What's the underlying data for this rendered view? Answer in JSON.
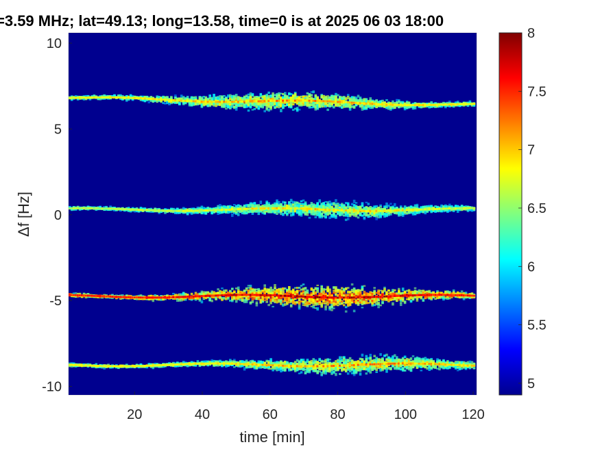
{
  "chart_data": {
    "type": "heatmap",
    "title": "=3.59 MHz;  lat=49.13; long=13.58, time=0 is at 2025 06 03 18:00",
    "xlabel": "time [min]",
    "ylabel": "Δf [Hz]",
    "xlim": [
      0.5,
      121
    ],
    "ylim": [
      -10.5,
      10.6
    ],
    "x_ticks": [
      20,
      40,
      60,
      80,
      100,
      120
    ],
    "y_ticks": [
      10,
      5,
      0,
      -5,
      -10
    ],
    "x_tick_labels": [
      "20",
      "40",
      "60",
      "80",
      "100",
      "120"
    ],
    "y_tick_labels": [
      "10",
      "5",
      "0",
      "-5",
      "-10"
    ],
    "colorbar": {
      "colormap": "jet",
      "range": [
        4.9,
        8
      ],
      "ticks": [
        5,
        5.5,
        6,
        6.5,
        7,
        7.5,
        8
      ],
      "tick_labels": [
        "5",
        "5.5",
        "6",
        "6.5",
        "7",
        "7.5",
        "8"
      ]
    },
    "background_color": "#00008f",
    "series": [
      {
        "name": "",
        "center_start_hz": 6.8,
        "center_end_hz": 6.4,
        "peak_level": 7.0,
        "max_spread_hz": 0.6,
        "peak_time_min": 65
      },
      {
        "name": "",
        "center_start_hz": 0.3,
        "center_end_hz": 0.3,
        "peak_level": 6.8,
        "max_spread_hz": 0.5,
        "peak_time_min": 75
      },
      {
        "name": "",
        "center_start_hz": -4.75,
        "center_end_hz": -4.75,
        "peak_level": 7.7,
        "max_spread_hz": 0.8,
        "peak_time_min": 75
      },
      {
        "name": "",
        "center_start_hz": -8.75,
        "center_end_hz": -8.75,
        "peak_level": 7.0,
        "max_spread_hz": 0.55,
        "peak_time_min": 85
      }
    ]
  }
}
